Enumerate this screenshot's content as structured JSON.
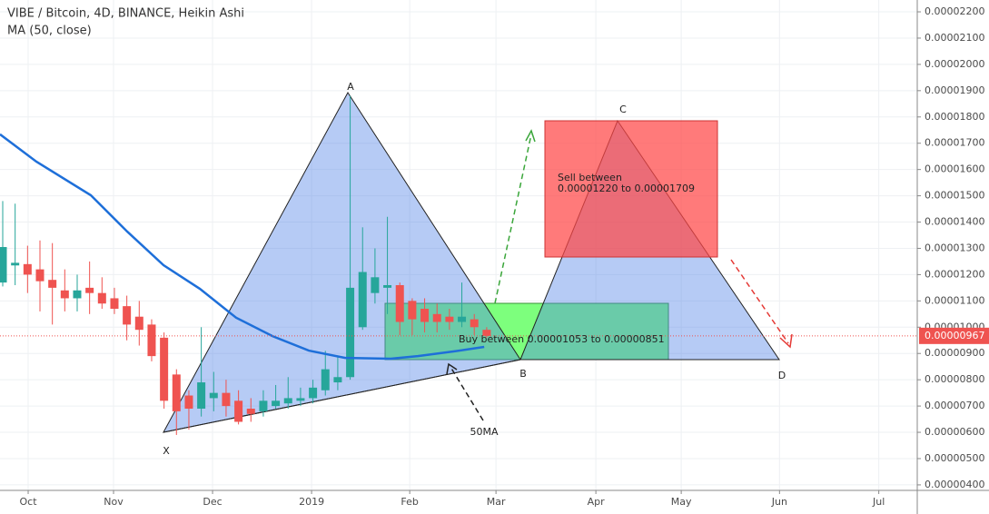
{
  "chart_data": {
    "type": "candlestick",
    "title": "VIBE / Bitcoin, 4D, BINANCE, Heikin Ashi",
    "xlim": [
      -0.22,
      73.7
    ],
    "xticks": [
      {
        "value": 2.05,
        "label": "Oct"
      },
      {
        "value": 8.93,
        "label": "Nov"
      },
      {
        "value": 16.91,
        "label": "Dec"
      },
      {
        "value": 24.89,
        "label": "2019"
      },
      {
        "value": 32.8,
        "label": "Feb"
      },
      {
        "value": 39.75,
        "label": "Mar"
      },
      {
        "value": 47.8,
        "label": "Apr"
      },
      {
        "value": 54.68,
        "label": "May"
      },
      {
        "value": 62.6,
        "label": "Jun"
      },
      {
        "value": 70.6,
        "label": "Jul"
      }
    ],
    "ylim": [
      3.79e-06,
      2.245e-05
    ],
    "yticks": [
      {
        "value": 4e-06,
        "label": "0.00000400"
      },
      {
        "value": 5e-06,
        "label": "0.00000500"
      },
      {
        "value": 6e-06,
        "label": "0.00000600"
      },
      {
        "value": 7e-06,
        "label": "0.00000700"
      },
      {
        "value": 8e-06,
        "label": "0.00000800"
      },
      {
        "value": 9e-06,
        "label": "0.00000900"
      },
      {
        "value": 1e-05,
        "label": "0.00001000"
      },
      {
        "value": 1.1e-05,
        "label": "0.00001100"
      },
      {
        "value": 1.2e-05,
        "label": "0.00001200"
      },
      {
        "value": 1.3e-05,
        "label": "0.00001300"
      },
      {
        "value": 1.4e-05,
        "label": "0.00001400"
      },
      {
        "value": 1.5e-05,
        "label": "0.00001500"
      },
      {
        "value": 1.6e-05,
        "label": "0.00001600"
      },
      {
        "value": 1.7e-05,
        "label": "0.00001700"
      },
      {
        "value": 1.8e-05,
        "label": "0.00001800"
      },
      {
        "value": 1.9e-05,
        "label": "0.00001900"
      },
      {
        "value": 2e-05,
        "label": "0.00002000"
      },
      {
        "value": 2.1e-05,
        "label": "0.00002100"
      },
      {
        "value": 2.2e-05,
        "label": "0.00002200"
      }
    ],
    "grid": true,
    "up_color": "#26a69a",
    "down_color": "#ef5350",
    "x": [
      0,
      1,
      2,
      3,
      4,
      5,
      6,
      7,
      8,
      9,
      10,
      11,
      12,
      13,
      14,
      15,
      16,
      17,
      18,
      19,
      20,
      21,
      22,
      23,
      24,
      25,
      26,
      27,
      28,
      29,
      30,
      31,
      32,
      33,
      34,
      35,
      36,
      37,
      38,
      39
    ],
    "open": [
      1.17e-05,
      1.235e-05,
      1.24e-05,
      1.22e-05,
      1.18e-05,
      1.14e-05,
      1.11e-05,
      1.15e-05,
      1.13e-05,
      1.11e-05,
      1.08e-05,
      1.04e-05,
      1.01e-05,
      9.6e-06,
      8.2e-06,
      7.4e-06,
      6.9e-06,
      7.3e-06,
      7.5e-06,
      7.2e-06,
      6.9e-06,
      6.8e-06,
      7e-06,
      7.1e-06,
      7.2e-06,
      7.3e-06,
      7.6e-06,
      7.9e-06,
      8.1e-06,
      1e-05,
      1.13e-05,
      1.15e-05,
      1.16e-05,
      1.1e-05,
      1.07e-05,
      1.05e-05,
      1.04e-05,
      1.02e-05,
      1.03e-05,
      9.9e-06
    ],
    "high": [
      1.48e-05,
      1.47e-05,
      1.31e-05,
      1.33e-05,
      1.32e-05,
      1.22e-05,
      1.2e-05,
      1.25e-05,
      1.19e-05,
      1.15e-05,
      1.12e-05,
      1.1e-05,
      1.03e-05,
      9.8e-06,
      8.4e-06,
      7.6e-06,
      1e-05,
      8.3e-06,
      8e-06,
      7.6e-06,
      7.3e-06,
      7.6e-06,
      7.8e-06,
      8.1e-06,
      7.7e-06,
      8e-06,
      9.1e-06,
      8.9e-06,
      1.88e-05,
      1.38e-05,
      1.3e-05,
      1.42e-05,
      1.17e-05,
      1.11e-05,
      1.11e-05,
      1.09e-05,
      1.07e-05,
      1.17e-05,
      1.05e-05,
      1e-05
    ],
    "low": [
      1.155e-05,
      1.16e-05,
      1.13e-05,
      1.06e-05,
      1.01e-05,
      1.06e-05,
      1.06e-05,
      1.05e-05,
      1.07e-05,
      1.05e-05,
      9.5e-06,
      9.3e-06,
      8.7e-06,
      6.9e-06,
      5.9e-06,
      6.1e-06,
      6.6e-06,
      6.8e-06,
      6.6e-06,
      6.3e-06,
      6.4e-06,
      6.6e-06,
      6.9e-06,
      6.9e-06,
      7e-06,
      7.1e-06,
      7.4e-06,
      7.6e-06,
      8e-06,
      9.9e-06,
      1.09e-05,
      1.05e-05,
      9.7e-06,
      9.7e-06,
      9.8e-06,
      9.8e-06,
      9.9e-06,
      1e-05,
      9.7e-06,
      9.6e-06
    ],
    "close": [
      1.305e-05,
      1.245e-05,
      1.2e-05,
      1.175e-05,
      1.15e-05,
      1.11e-05,
      1.14e-05,
      1.13e-05,
      1.09e-05,
      1.07e-05,
      1.01e-05,
      9.9e-06,
      8.9e-06,
      7.2e-06,
      6.8e-06,
      6.9e-06,
      7.9e-06,
      7.5e-06,
      7e-06,
      6.4e-06,
      6.7e-06,
      7.2e-06,
      7.2e-06,
      7.3e-06,
      7.3e-06,
      7.7e-06,
      8.4e-06,
      8.1e-06,
      1.15e-05,
      1.21e-05,
      1.19e-05,
      1.16e-05,
      1.02e-05,
      1.03e-05,
      1.02e-05,
      1.02e-05,
      1.02e-05,
      1.04e-05,
      1e-05,
      9.67e-06
    ],
    "series": [
      {
        "name": "MA (50, close)",
        "color": "#1e6fd9",
        "x": [
          -0.22,
          2.71,
          7.1,
          10.03,
          12.96,
          15.89,
          18.81,
          21.74,
          24.67,
          27.6,
          31.26,
          33.46,
          36.39,
          38.8
        ],
        "values": [
          1.734e-05,
          1.63e-05,
          1.502e-05,
          1.364e-05,
          1.236e-05,
          1.146e-05,
          1.036e-05,
          9.66e-06,
          9.11e-06,
          8.83e-06,
          8.8e-06,
          8.9e-06,
          9.08e-06,
          9.25e-06
        ]
      }
    ],
    "last_price": {
      "value": 9.67e-06,
      "label": "0.00000967",
      "color": "#ef5350"
    },
    "annotations": [
      "X",
      "A",
      "B",
      "C",
      "D",
      "50MA",
      "Sell between",
      "0.00001220 to 0.00001709",
      "Buy between 0.00001053 to 0.00000851"
    ]
  }
}
